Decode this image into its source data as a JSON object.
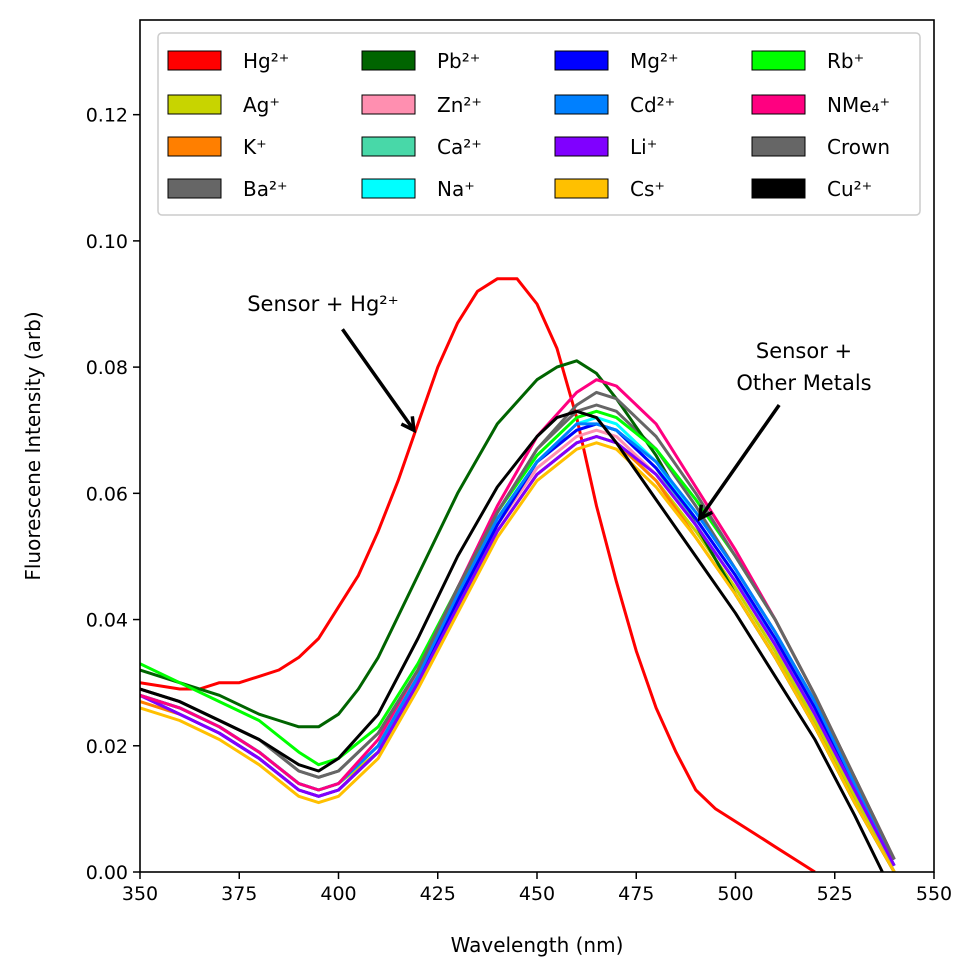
{
  "chart_data": {
    "type": "line",
    "xlabel": "Wavelength (nm)",
    "ylabel": "Fluorescene Intensity (arb)",
    "xlim": [
      350,
      550
    ],
    "ylim": [
      0,
      0.135
    ],
    "xticks": [
      "350",
      "375",
      "400",
      "425",
      "450",
      "475",
      "500",
      "525",
      "550"
    ],
    "yticks": [
      "0.00",
      "0.02",
      "0.04",
      "0.06",
      "0.08",
      "0.10",
      "0.12"
    ],
    "grid": false,
    "legend_placement": "top, 4 columns",
    "annotations": [
      {
        "lines": [
          "Sensor + Hg²⁺"
        ],
        "arrow_from": [
          401,
          0.086
        ],
        "arrow_to": [
          419,
          0.07
        ]
      },
      {
        "lines": [
          "Sensor +",
          "Other Metals"
        ],
        "arrow_from": [
          511,
          0.074
        ],
        "arrow_to": [
          491,
          0.056
        ]
      }
    ],
    "series": [
      {
        "name": "Hg²⁺",
        "color": "#ff0000",
        "x": [
          350,
          360,
          365,
          370,
          375,
          380,
          385,
          390,
          395,
          400,
          405,
          410,
          415,
          420,
          425,
          430,
          435,
          440,
          445,
          450,
          455,
          460,
          465,
          470,
          475,
          480,
          485,
          490,
          495,
          500,
          505,
          510,
          515,
          520
        ],
        "values": [
          0.03,
          0.029,
          0.029,
          0.03,
          0.03,
          0.031,
          0.032,
          0.034,
          0.037,
          0.042,
          0.047,
          0.054,
          0.062,
          0.071,
          0.08,
          0.087,
          0.092,
          0.094,
          0.094,
          0.09,
          0.083,
          0.072,
          0.058,
          0.046,
          0.035,
          0.026,
          0.019,
          0.013,
          0.01,
          0.008,
          0.006,
          0.004,
          0.002,
          0.0
        ]
      },
      {
        "name": "Ag⁺",
        "color": "#c8d400",
        "x": [
          350,
          360,
          370,
          380,
          390,
          395,
          400,
          410,
          420,
          430,
          440,
          450,
          460,
          465,
          470,
          480,
          490,
          500,
          510,
          520,
          530,
          540
        ],
        "values": [
          0.028,
          0.026,
          0.023,
          0.019,
          0.014,
          0.013,
          0.014,
          0.019,
          0.03,
          0.042,
          0.054,
          0.063,
          0.068,
          0.069,
          0.068,
          0.062,
          0.054,
          0.045,
          0.035,
          0.024,
          0.012,
          0.001
        ]
      },
      {
        "name": "K⁺",
        "color": "#ff7f00",
        "x": [
          350,
          360,
          370,
          380,
          390,
          395,
          400,
          410,
          420,
          430,
          440,
          450,
          460,
          465,
          470,
          480,
          490,
          500,
          510,
          520,
          530,
          540
        ],
        "values": [
          0.027,
          0.025,
          0.022,
          0.018,
          0.013,
          0.012,
          0.013,
          0.019,
          0.03,
          0.042,
          0.054,
          0.063,
          0.068,
          0.069,
          0.068,
          0.062,
          0.053,
          0.044,
          0.034,
          0.023,
          0.011,
          0.0
        ]
      },
      {
        "name": "Ba²⁺",
        "color": "#666666",
        "x": [
          350,
          360,
          370,
          380,
          390,
          395,
          400,
          410,
          420,
          430,
          440,
          450,
          460,
          465,
          470,
          480,
          490,
          500,
          510,
          520,
          530,
          540
        ],
        "values": [
          0.029,
          0.027,
          0.024,
          0.021,
          0.016,
          0.015,
          0.016,
          0.022,
          0.032,
          0.045,
          0.057,
          0.067,
          0.073,
          0.074,
          0.073,
          0.067,
          0.058,
          0.048,
          0.038,
          0.027,
          0.014,
          0.002
        ]
      },
      {
        "name": "Pb²⁺",
        "color": "#006400",
        "x": [
          350,
          360,
          370,
          380,
          385,
          390,
          395,
          400,
          405,
          410,
          420,
          430,
          440,
          450,
          455,
          460,
          465,
          470,
          480,
          490,
          500,
          510,
          520,
          530,
          540
        ],
        "values": [
          0.032,
          0.03,
          0.028,
          0.025,
          0.024,
          0.023,
          0.023,
          0.025,
          0.029,
          0.034,
          0.047,
          0.06,
          0.071,
          0.078,
          0.08,
          0.081,
          0.079,
          0.075,
          0.066,
          0.055,
          0.044,
          0.034,
          0.023,
          0.011,
          0.0
        ]
      },
      {
        "name": "Zn²⁺",
        "color": "#ff8fb0",
        "x": [
          350,
          360,
          370,
          380,
          390,
          395,
          400,
          410,
          420,
          430,
          440,
          450,
          460,
          465,
          470,
          480,
          490,
          500,
          510,
          520,
          530,
          540
        ],
        "values": [
          0.028,
          0.026,
          0.023,
          0.019,
          0.014,
          0.013,
          0.014,
          0.02,
          0.031,
          0.043,
          0.055,
          0.064,
          0.069,
          0.07,
          0.069,
          0.063,
          0.055,
          0.046,
          0.036,
          0.025,
          0.013,
          0.001
        ]
      },
      {
        "name": "Ca²⁺",
        "color": "#48d8a8",
        "x": [
          350,
          360,
          370,
          380,
          390,
          395,
          400,
          410,
          420,
          430,
          440,
          450,
          460,
          465,
          470,
          480,
          490,
          500,
          510,
          520,
          530,
          540
        ],
        "values": [
          0.028,
          0.026,
          0.023,
          0.019,
          0.014,
          0.013,
          0.014,
          0.02,
          0.031,
          0.044,
          0.056,
          0.065,
          0.07,
          0.071,
          0.07,
          0.064,
          0.055,
          0.046,
          0.036,
          0.025,
          0.013,
          0.001
        ]
      },
      {
        "name": "Na⁺",
        "color": "#00ffff",
        "x": [
          350,
          360,
          370,
          380,
          390,
          395,
          400,
          410,
          420,
          430,
          440,
          450,
          460,
          465,
          470,
          480,
          490,
          500,
          510,
          520,
          530,
          540
        ],
        "values": [
          0.028,
          0.026,
          0.023,
          0.019,
          0.014,
          0.013,
          0.014,
          0.02,
          0.031,
          0.044,
          0.056,
          0.065,
          0.071,
          0.072,
          0.071,
          0.065,
          0.056,
          0.047,
          0.036,
          0.025,
          0.013,
          0.001
        ]
      },
      {
        "name": "Mg²⁺",
        "color": "#0000ff",
        "x": [
          350,
          360,
          370,
          380,
          390,
          395,
          400,
          410,
          420,
          430,
          440,
          450,
          460,
          465,
          470,
          480,
          490,
          500,
          510,
          520,
          530,
          540
        ],
        "values": [
          0.028,
          0.025,
          0.022,
          0.018,
          0.013,
          0.012,
          0.013,
          0.019,
          0.03,
          0.043,
          0.055,
          0.065,
          0.07,
          0.071,
          0.07,
          0.064,
          0.056,
          0.047,
          0.037,
          0.026,
          0.014,
          0.002
        ]
      },
      {
        "name": "Cd²⁺",
        "color": "#0080ff",
        "x": [
          350,
          360,
          370,
          380,
          390,
          395,
          400,
          410,
          420,
          430,
          440,
          450,
          460,
          465,
          470,
          480,
          490,
          500,
          510,
          520,
          530,
          540
        ],
        "values": [
          0.028,
          0.026,
          0.023,
          0.019,
          0.014,
          0.013,
          0.014,
          0.02,
          0.031,
          0.044,
          0.056,
          0.065,
          0.071,
          0.071,
          0.07,
          0.065,
          0.057,
          0.048,
          0.038,
          0.027,
          0.014,
          0.002
        ]
      },
      {
        "name": "Li⁺",
        "color": "#8000ff",
        "x": [
          350,
          360,
          370,
          380,
          390,
          395,
          400,
          410,
          420,
          430,
          440,
          450,
          460,
          465,
          470,
          480,
          490,
          500,
          510,
          520,
          530,
          540
        ],
        "values": [
          0.028,
          0.025,
          0.022,
          0.018,
          0.013,
          0.012,
          0.013,
          0.019,
          0.03,
          0.042,
          0.054,
          0.063,
          0.068,
          0.069,
          0.068,
          0.063,
          0.055,
          0.046,
          0.036,
          0.025,
          0.013,
          0.001
        ]
      },
      {
        "name": "Cs⁺",
        "color": "#ffc000",
        "x": [
          350,
          360,
          370,
          380,
          390,
          395,
          400,
          410,
          420,
          430,
          440,
          450,
          460,
          465,
          470,
          480,
          490,
          500,
          510,
          520,
          530,
          540
        ],
        "values": [
          0.026,
          0.024,
          0.021,
          0.017,
          0.012,
          0.011,
          0.012,
          0.018,
          0.029,
          0.041,
          0.053,
          0.062,
          0.067,
          0.068,
          0.067,
          0.061,
          0.053,
          0.044,
          0.034,
          0.023,
          0.011,
          0.0
        ]
      },
      {
        "name": "Rb⁺",
        "color": "#00ff00",
        "x": [
          350,
          360,
          370,
          380,
          390,
          395,
          400,
          410,
          420,
          430,
          440,
          450,
          460,
          465,
          470,
          480,
          490,
          500,
          510,
          520,
          530,
          540
        ],
        "values": [
          0.033,
          0.03,
          0.027,
          0.024,
          0.019,
          0.017,
          0.018,
          0.023,
          0.033,
          0.045,
          0.057,
          0.066,
          0.072,
          0.073,
          0.072,
          0.067,
          0.059,
          0.05,
          0.04,
          0.028,
          0.015,
          0.002
        ]
      },
      {
        "name": "NMe₄⁺",
        "color": "#ff0080",
        "x": [
          350,
          360,
          370,
          380,
          390,
          395,
          400,
          410,
          420,
          430,
          440,
          450,
          460,
          465,
          470,
          480,
          490,
          500,
          510,
          520,
          530,
          540
        ],
        "values": [
          0.028,
          0.026,
          0.023,
          0.019,
          0.014,
          0.013,
          0.014,
          0.021,
          0.032,
          0.045,
          0.058,
          0.069,
          0.076,
          0.078,
          0.077,
          0.071,
          0.061,
          0.051,
          0.04,
          0.028,
          0.015,
          0.002
        ]
      },
      {
        "name": "Crown",
        "color": "#666666",
        "x": [
          350,
          360,
          370,
          380,
          390,
          395,
          400,
          410,
          420,
          430,
          440,
          450,
          460,
          465,
          470,
          480,
          490,
          500,
          510,
          520,
          530,
          540
        ],
        "values": [
          0.029,
          0.027,
          0.024,
          0.021,
          0.016,
          0.015,
          0.016,
          0.022,
          0.032,
          0.045,
          0.057,
          0.067,
          0.074,
          0.076,
          0.075,
          0.069,
          0.06,
          0.05,
          0.04,
          0.028,
          0.015,
          0.002
        ]
      },
      {
        "name": "Cu²⁺",
        "color": "#000000",
        "x": [
          350,
          360,
          370,
          380,
          385,
          390,
          395,
          400,
          410,
          420,
          430,
          440,
          450,
          455,
          460,
          465,
          470,
          480,
          490,
          500,
          510,
          520,
          530,
          537
        ],
        "values": [
          0.029,
          0.027,
          0.024,
          0.021,
          0.019,
          0.017,
          0.016,
          0.018,
          0.025,
          0.037,
          0.05,
          0.061,
          0.069,
          0.072,
          0.073,
          0.072,
          0.068,
          0.059,
          0.05,
          0.041,
          0.031,
          0.021,
          0.009,
          0.0
        ]
      }
    ]
  }
}
